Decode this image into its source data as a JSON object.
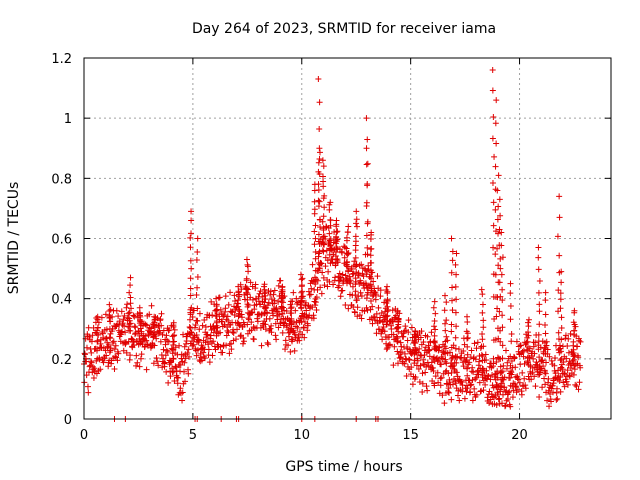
{
  "chart_data": {
    "type": "scatter",
    "title": "Day 264 of 2023, SRMTID for receiver iama",
    "xlabel": "GPS time / hours",
    "ylabel": "SRMTID / TECUs",
    "xlim": [
      0,
      24.2
    ],
    "ylim": [
      0,
      1.2
    ],
    "xticks": [
      0,
      5,
      10,
      15,
      20
    ],
    "xtick_labels": [
      "0",
      "5",
      "10",
      "15",
      "20"
    ],
    "yticks": [
      0,
      0.2,
      0.4,
      0.6,
      0.8,
      1,
      1.2
    ],
    "ytick_labels": [
      "0",
      "0.2",
      "0.4",
      "0.6",
      "0.8",
      "1",
      "1.2"
    ],
    "grid": true,
    "marker": "+",
    "color": "#e00000",
    "series": [
      {
        "name": "SRMTID",
        "trend": [
          [
            0,
            0.19
          ],
          [
            0.5,
            0.22
          ],
          [
            1,
            0.26
          ],
          [
            1.5,
            0.27
          ],
          [
            2,
            0.3
          ],
          [
            2.5,
            0.25
          ],
          [
            3,
            0.28
          ],
          [
            3.5,
            0.27
          ],
          [
            4,
            0.21
          ],
          [
            4.5,
            0.17
          ],
          [
            5,
            0.3
          ],
          [
            5.5,
            0.26
          ],
          [
            6,
            0.3
          ],
          [
            6.5,
            0.31
          ],
          [
            7,
            0.33
          ],
          [
            7.5,
            0.36
          ],
          [
            8,
            0.36
          ],
          [
            8.5,
            0.33
          ],
          [
            9,
            0.37
          ],
          [
            9.5,
            0.3
          ],
          [
            10,
            0.34
          ],
          [
            10.5,
            0.42
          ],
          [
            11,
            0.55
          ],
          [
            11.5,
            0.53
          ],
          [
            12,
            0.48
          ],
          [
            12.5,
            0.44
          ],
          [
            13,
            0.43
          ],
          [
            13.5,
            0.36
          ],
          [
            14,
            0.31
          ],
          [
            14.5,
            0.27
          ],
          [
            15,
            0.22
          ],
          [
            15.5,
            0.2
          ],
          [
            16,
            0.19
          ],
          [
            16.5,
            0.17
          ],
          [
            17,
            0.16
          ],
          [
            17.5,
            0.16
          ],
          [
            18,
            0.15
          ],
          [
            18.5,
            0.13
          ],
          [
            19,
            0.11
          ],
          [
            19.5,
            0.12
          ],
          [
            20,
            0.18
          ],
          [
            20.5,
            0.2
          ],
          [
            21,
            0.17
          ],
          [
            21.5,
            0.14
          ],
          [
            22,
            0.18
          ],
          [
            22.5,
            0.2
          ],
          [
            22.8,
            0.2
          ]
        ],
        "spikes": [
          [
            0.6,
            0.34
          ],
          [
            1.2,
            0.38
          ],
          [
            2.1,
            0.47
          ],
          [
            2.6,
            0.37
          ],
          [
            3.2,
            0.34
          ],
          [
            4.1,
            0.32
          ],
          [
            4.9,
            0.69
          ],
          [
            5.2,
            0.6
          ],
          [
            6.1,
            0.4
          ],
          [
            7.1,
            0.44
          ],
          [
            7.5,
            0.53
          ],
          [
            8.3,
            0.44
          ],
          [
            9.1,
            0.44
          ],
          [
            9.5,
            0.38
          ],
          [
            10.0,
            0.48
          ],
          [
            10.6,
            0.78
          ],
          [
            10.8,
            0.9
          ],
          [
            10.8,
            1.13
          ],
          [
            11.0,
            0.86
          ],
          [
            11.3,
            0.72
          ],
          [
            11.6,
            0.66
          ],
          [
            12.1,
            0.64
          ],
          [
            12.5,
            0.69
          ],
          [
            13.0,
            1.0
          ],
          [
            13.0,
            0.9
          ],
          [
            13.2,
            0.62
          ],
          [
            13.9,
            0.44
          ],
          [
            14.4,
            0.36
          ],
          [
            15.2,
            0.29
          ],
          [
            16.1,
            0.39
          ],
          [
            16.6,
            0.41
          ],
          [
            16.9,
            0.6
          ],
          [
            17.1,
            0.55
          ],
          [
            17.6,
            0.34
          ],
          [
            18.3,
            0.43
          ],
          [
            18.8,
            1.16
          ],
          [
            18.9,
            1.06
          ],
          [
            19.0,
            0.81
          ],
          [
            19.1,
            0.73
          ],
          [
            19.2,
            0.62
          ],
          [
            19.6,
            0.45
          ],
          [
            20.4,
            0.33
          ],
          [
            20.9,
            0.57
          ],
          [
            21.2,
            0.42
          ],
          [
            21.8,
            0.74
          ],
          [
            21.9,
            0.49
          ],
          [
            22.5,
            0.36
          ]
        ],
        "zero_hours": [
          1.4,
          1.9,
          5.1,
          5.2,
          6.3,
          7.0,
          7.1,
          10.0,
          10.6,
          12.5,
          13.4,
          13.5
        ]
      }
    ]
  }
}
